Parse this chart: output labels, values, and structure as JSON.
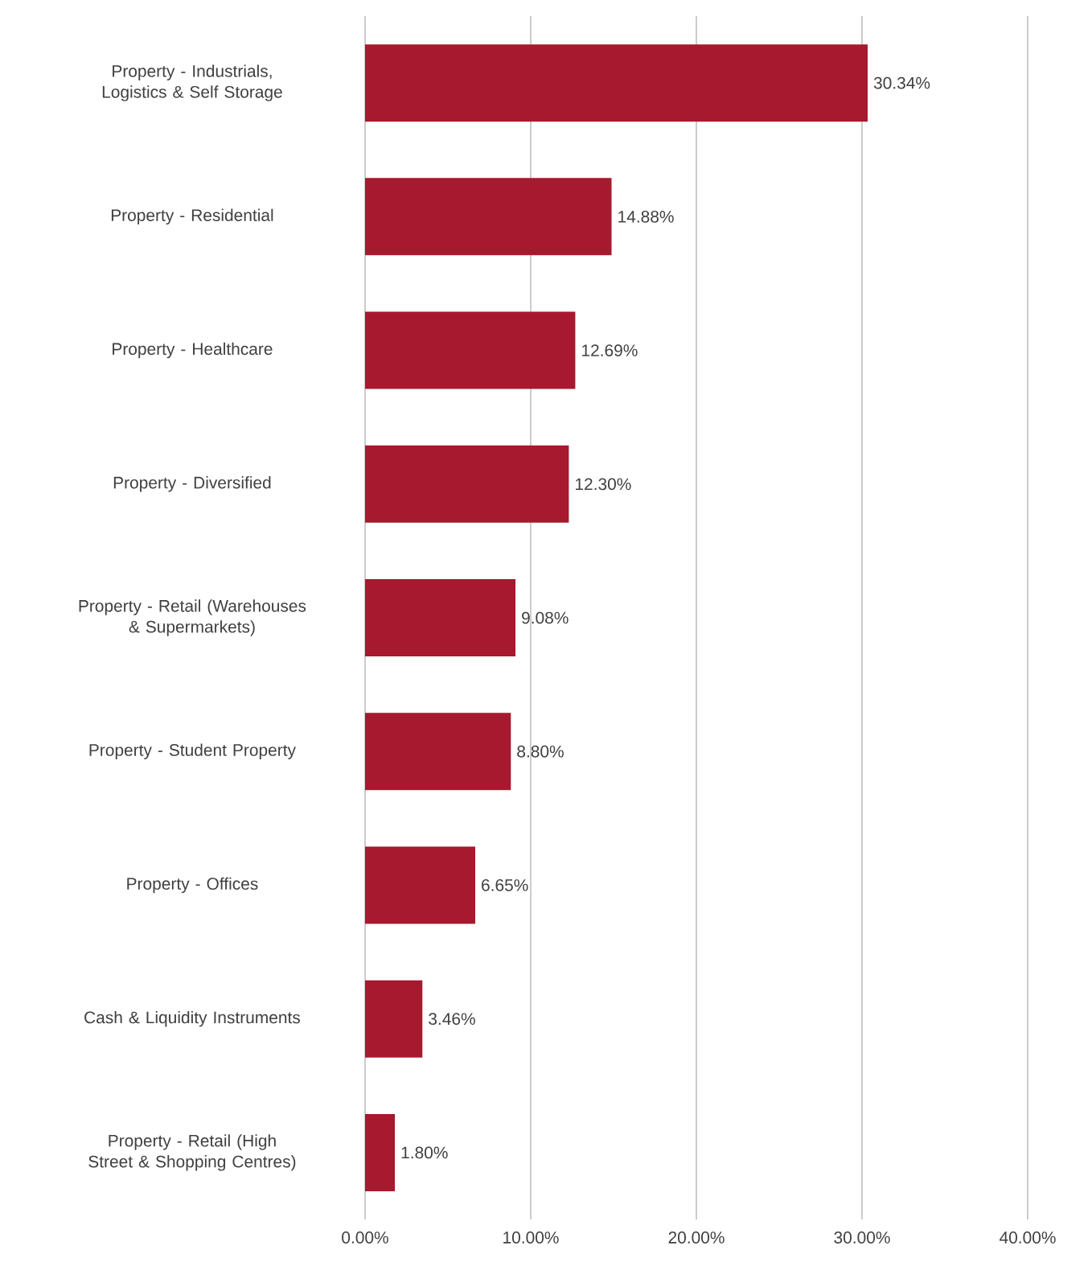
{
  "chart_data": {
    "type": "bar",
    "orientation": "horizontal",
    "categories": [
      "Property - Industrials, Logistics & Self Storage",
      "Property - Residential",
      "Property - Healthcare",
      "Property - Diversified",
      "Property - Retail (Warehouses & Supermarkets)",
      "Property - Student Property",
      "Property - Offices",
      "Cash & Liquidity Instruments",
      "Property - Retail (High Street & Shopping Centres)"
    ],
    "values": [
      30.34,
      14.88,
      12.69,
      12.3,
      9.08,
      8.8,
      6.65,
      3.46,
      1.8
    ],
    "value_labels": [
      "30.34%",
      "14.88%",
      "12.69%",
      "12.30%",
      "9.08%",
      "8.80%",
      "6.65%",
      "3.46%",
      "1.80%"
    ],
    "color": "#a6192e",
    "xlim": [
      0,
      40
    ],
    "xticks": [
      {
        "value": 0,
        "label": "0.00%"
      },
      {
        "value": 10,
        "label": "10.00%"
      },
      {
        "value": 20,
        "label": "20.00%"
      },
      {
        "value": 30,
        "label": "30.00%"
      },
      {
        "value": 40,
        "label": "40.00%"
      }
    ],
    "grid": "x"
  }
}
